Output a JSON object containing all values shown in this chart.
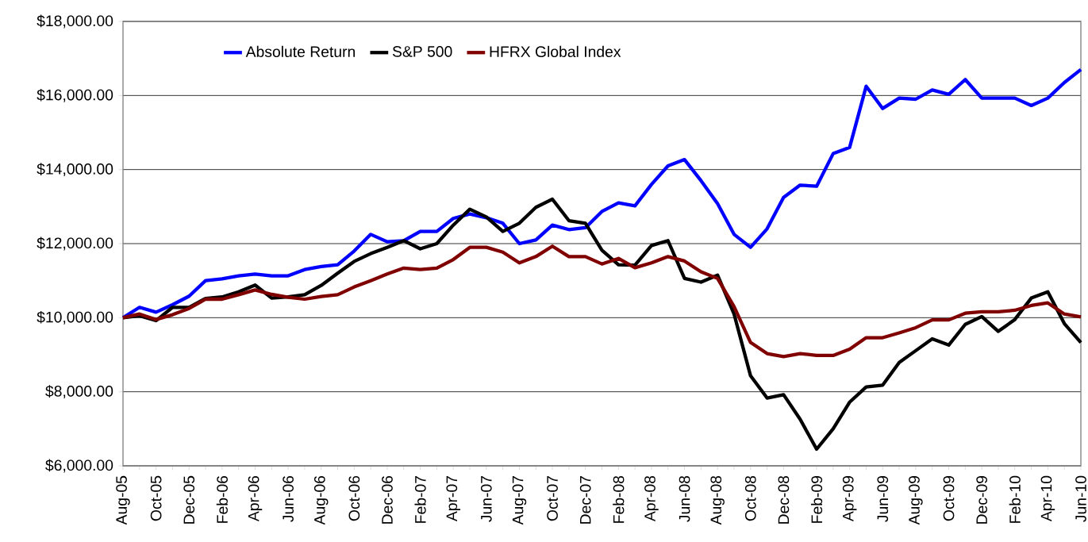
{
  "chart_data": {
    "type": "line",
    "categories": [
      "Aug-05",
      null,
      "Oct-05",
      null,
      "Dec-05",
      null,
      "Feb-06",
      null,
      "Apr-06",
      null,
      "Jun-06",
      null,
      "Aug-06",
      null,
      "Oct-06",
      null,
      "Dec-06",
      null,
      "Feb-07",
      null,
      "Apr-07",
      null,
      "Jun-07",
      null,
      "Aug-07",
      null,
      "Oct-07",
      null,
      "Dec-07",
      null,
      "Feb-08",
      null,
      "Apr-08",
      null,
      "Jun-08",
      null,
      "Aug-08",
      null,
      "Oct-08",
      null,
      "Dec-08",
      null,
      "Feb-09",
      null,
      "Apr-09",
      null,
      "Jun-09",
      null,
      "Aug-09",
      null,
      "Oct-09",
      null,
      "Dec-09",
      null,
      "Feb-10",
      null,
      "Apr-10",
      null,
      "Jun-10"
    ],
    "series": [
      {
        "name": "Absolute Return",
        "color": "#0000ff",
        "values": [
          10000,
          10280,
          10150,
          10350,
          10580,
          11000,
          11050,
          11130,
          11180,
          11130,
          11130,
          11300,
          11380,
          11430,
          11800,
          12250,
          12050,
          12080,
          12330,
          12330,
          12680,
          12800,
          12700,
          12550,
          12000,
          12100,
          12500,
          12380,
          12430,
          12870,
          13100,
          13020,
          13600,
          14100,
          14270,
          13700,
          13080,
          12250,
          11900,
          12400,
          13250,
          13580,
          13550,
          14430,
          14600,
          16250,
          15650,
          15930,
          15900,
          16150,
          16030,
          16430,
          15930,
          15930,
          15930,
          15730,
          15930,
          16350,
          16700
        ]
      },
      {
        "name": "S&P 500",
        "color": "#000000",
        "values": [
          10000,
          10050,
          9920,
          10280,
          10280,
          10520,
          10560,
          10700,
          10880,
          10530,
          10560,
          10620,
          10870,
          11200,
          11520,
          11730,
          11900,
          12080,
          11860,
          12000,
          12500,
          12930,
          12720,
          12330,
          12550,
          12980,
          13200,
          12620,
          12550,
          11820,
          11430,
          11420,
          11950,
          12080,
          11060,
          10960,
          11150,
          10100,
          8430,
          7830,
          7920,
          7260,
          6450,
          7000,
          7720,
          8130,
          8180,
          8790,
          9110,
          9430,
          9260,
          9820,
          10030,
          9630,
          9950,
          10530,
          10700,
          9840,
          9330
        ]
      },
      {
        "name": "HFRX Global Index",
        "color": "#800000",
        "values": [
          10000,
          10100,
          9950,
          10080,
          10250,
          10500,
          10500,
          10620,
          10750,
          10630,
          10550,
          10500,
          10570,
          10620,
          10830,
          11000,
          11180,
          11340,
          11300,
          11340,
          11570,
          11900,
          11900,
          11770,
          11480,
          11650,
          11930,
          11650,
          11650,
          11450,
          11600,
          11350,
          11480,
          11650,
          11530,
          11240,
          11060,
          10300,
          9330,
          9030,
          8950,
          9030,
          8980,
          8980,
          9150,
          9460,
          9460,
          9590,
          9730,
          9940,
          9940,
          10120,
          10160,
          10160,
          10200,
          10330,
          10400,
          10100,
          10020
        ]
      }
    ],
    "ylim": [
      6000,
      18000
    ],
    "yticks": [
      {
        "value": 6000,
        "label": "$6,000.00"
      },
      {
        "value": 8000,
        "label": "$8,000.00"
      },
      {
        "value": 10000,
        "label": "$10,000.00"
      },
      {
        "value": 12000,
        "label": "$12,000.00"
      },
      {
        "value": 14000,
        "label": "$14,000.00"
      },
      {
        "value": 16000,
        "label": "$16,000.00"
      },
      {
        "value": 18000,
        "label": "$18,000.00"
      }
    ],
    "grid": "y",
    "legend": "top left",
    "marker": "none",
    "line_style": "solid"
  }
}
